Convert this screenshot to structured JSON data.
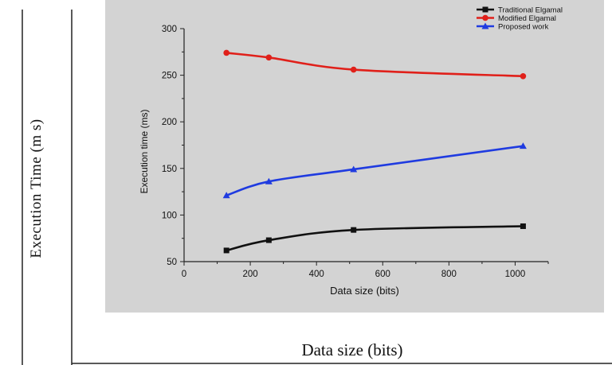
{
  "outer_axes": {
    "ylabel": "Execution Time (m s)",
    "xlabel": "Data size (bits)"
  },
  "chart_data": {
    "type": "line",
    "title": "",
    "xlabel": "Data size (bits)",
    "ylabel": "Execution time (ms)",
    "xlim": [
      0,
      1100
    ],
    "ylim": [
      50,
      300
    ],
    "xticks": [
      0,
      200,
      400,
      600,
      800,
      1000
    ],
    "yticks": [
      50,
      100,
      150,
      200,
      250,
      300
    ],
    "grid": false,
    "legend_position": "top-right",
    "x": [
      128,
      256,
      512,
      1024
    ],
    "series": [
      {
        "name": "Traditional Elgamal",
        "color": "#111111",
        "marker": "square",
        "values": [
          62,
          73,
          84,
          88
        ]
      },
      {
        "name": "Modified Elgamal",
        "color": "#e0201a",
        "marker": "circle",
        "values": [
          274,
          269,
          256,
          249
        ]
      },
      {
        "name": "Proposed work",
        "color": "#1f3be0",
        "marker": "triangle",
        "values": [
          121,
          136,
          149,
          174
        ]
      }
    ]
  },
  "colors": {
    "plot_background": "#d3d3d3",
    "axis": "#222222"
  }
}
